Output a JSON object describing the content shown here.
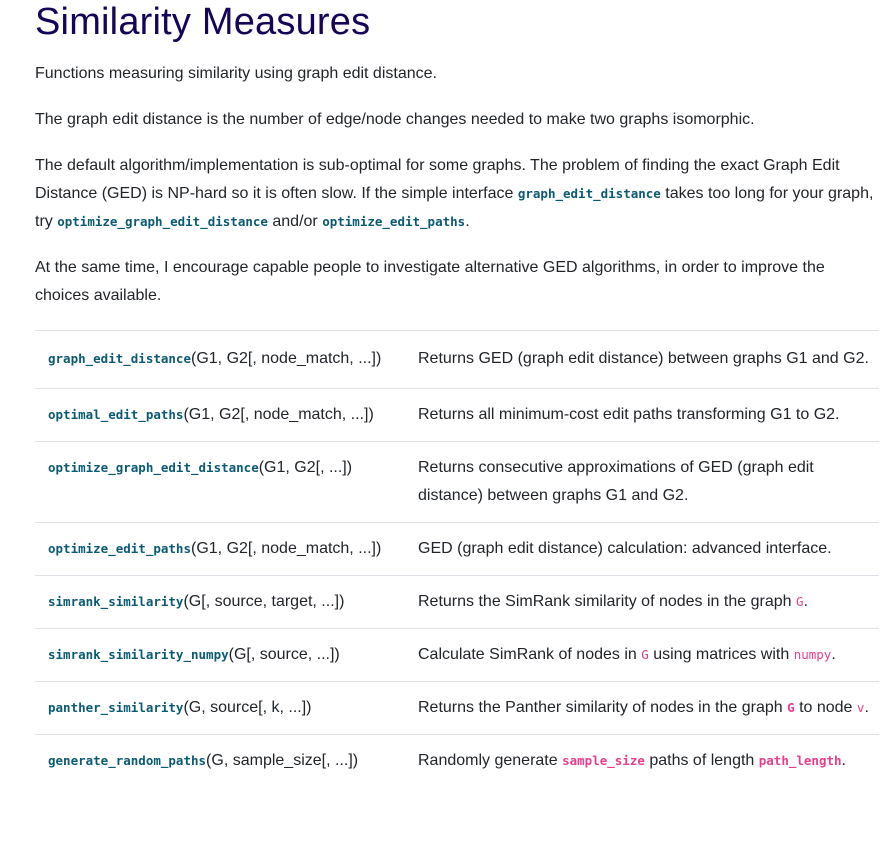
{
  "title": "Similarity Measures",
  "intro": "Functions measuring similarity using graph edit distance.",
  "ged_definition": "The graph edit distance is the number of edge/node changes needed to make two graphs isomorphic.",
  "default_paragraph": {
    "part1": "The default algorithm/implementation is sub-optimal for some graphs. The problem of finding the exact Graph Edit Distance (GED) is NP-hard so it is often slow. If the simple interface ",
    "code1": "graph_edit_distance",
    "part2": " takes too long for your graph, try ",
    "code2": "optimize_graph_edit_distance",
    "part3": " and/or ",
    "code3": "optimize_edit_paths",
    "part4": "."
  },
  "encourage": "At the same time, I encourage capable people to investigate alternative GED algorithms, in order to improve the choices available.",
  "functions": [
    {
      "name": "graph_edit_distance",
      "args": "(G1, G2[, node_match, ...])",
      "desc_parts": [
        "Returns GED (graph edit distance) between graphs G1 and G2."
      ]
    },
    {
      "name": "optimal_edit_paths",
      "args": "(G1, G2[, node_match, ...])",
      "desc_parts": [
        "Returns all minimum-cost edit paths transforming G1 to G2."
      ]
    },
    {
      "name": "optimize_graph_edit_distance",
      "args": "(G1, G2[, ...])",
      "desc_parts": [
        "Returns consecutive approximations of GED (graph edit distance) between graphs G1 and G2."
      ]
    },
    {
      "name": "optimize_edit_paths",
      "args": "(G1, G2[, node_match, ...])",
      "desc_parts": [
        "GED (graph edit distance) calculation: advanced interface."
      ]
    },
    {
      "name": "simrank_similarity",
      "args": "(G[, source, target, ...])",
      "desc_parts": [
        "Returns the SimRank similarity of nodes in the graph ",
        "G",
        "."
      ]
    },
    {
      "name": "simrank_similarity_numpy",
      "args": "(G[, source, ...])",
      "desc_parts": [
        "Calculate SimRank of nodes in ",
        "G",
        " using matrices with ",
        "numpy",
        "."
      ]
    },
    {
      "name": "panther_similarity",
      "args": "(G, source[, k, ...])",
      "desc_parts": [
        "Returns the Panther similarity of nodes in the graph ",
        "G",
        " to node ",
        "v",
        "."
      ]
    },
    {
      "name": "generate_random_paths",
      "args": "(G, sample_size[, ...])",
      "desc_parts": [
        "Randomly generate ",
        "sample_size",
        " paths of length ",
        "path_length",
        "."
      ]
    }
  ]
}
